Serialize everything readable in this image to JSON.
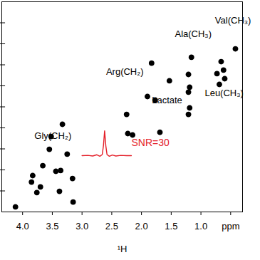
{
  "chart_data": {
    "type": "scatter",
    "xlabel": "¹H",
    "xlim": [
      4.35,
      0.3
    ],
    "xticks": [
      {
        "value": 4,
        "label": "4.0"
      },
      3.5,
      {
        "value": 3,
        "label": "3.0"
      },
      2.5,
      {
        "value": 2,
        "label": "2.0"
      },
      1.5,
      {
        "value": 1,
        "label": "1.0"
      },
      {
        "value": 0.5,
        "label": "ppm"
      }
    ],
    "ylim": [
      0,
      100
    ],
    "yticks": [
      10,
      20,
      30,
      40,
      50,
      60,
      70,
      80,
      90
    ],
    "tick_labels": "x",
    "grid": false,
    "color": "#000000",
    "marker": "circle",
    "x": [
      0.42,
      0.66,
      0.62,
      0.6,
      1.16,
      0.73,
      0.69,
      1.21,
      1.19,
      1.21,
      1.19,
      1.21,
      1.83,
      1.9,
      1.77,
      1.53,
      2.25,
      2.23,
      2.15,
      1.69,
      3.33,
      3.52,
      3.55,
      3.25,
      3.66,
      3.83,
      3.85,
      3.44,
      3.36,
      3.16,
      3.15,
      3.7,
      3.76,
      4.12,
      3.38
    ],
    "values": [
      77.6,
      71.5,
      67.5,
      63.4,
      73.6,
      65.8,
      60.7,
      65.4,
      59.3,
      57.0,
      49.5,
      46.4,
      70.8,
      54.9,
      53.2,
      62.4,
      46.4,
      37.3,
      36.6,
      37.9,
      41.7,
      35.9,
      29.8,
      27.5,
      22.0,
      17.3,
      14.2,
      19.3,
      19.7,
      15.9,
      4.7,
      11.9,
      9.2,
      2.4,
      9.8
    ],
    "trace": {
      "type": "line",
      "color": "#e4202a",
      "x": [
        3.0,
        2.9,
        2.82,
        2.75,
        2.7,
        2.66,
        2.64,
        2.62,
        2.6,
        2.58,
        2.54,
        2.49,
        2.43,
        2.35,
        2.25,
        2.17
      ],
      "values": [
        26.8,
        26.9,
        26.6,
        27.2,
        26.5,
        27.3,
        31.5,
        38.6,
        31.5,
        27.3,
        26.5,
        27.1,
        26.6,
        26.9,
        26.8,
        26.8
      ]
    },
    "trace_label": {
      "text": "SNR=30",
      "x": 2.17,
      "y": 32.9,
      "color": "#e4202a"
    },
    "annotations": [
      {
        "text": "Ala(CH₃)",
        "x": 1.13,
        "y": 84.7
      },
      {
        "text": "Val(CH₃)",
        "x": 0.46,
        "y": 91.2
      },
      {
        "text": "Arg(CH₂)",
        "x": 2.28,
        "y": 66.8
      },
      {
        "text": "Lactate",
        "x": 1.57,
        "y": 53.2
      },
      {
        "text": "Leu(CH₃)",
        "x": 0.61,
        "y": 56.6
      },
      {
        "text": "Gly(CH₂)",
        "x": 3.49,
        "y": 36.3
      }
    ]
  }
}
